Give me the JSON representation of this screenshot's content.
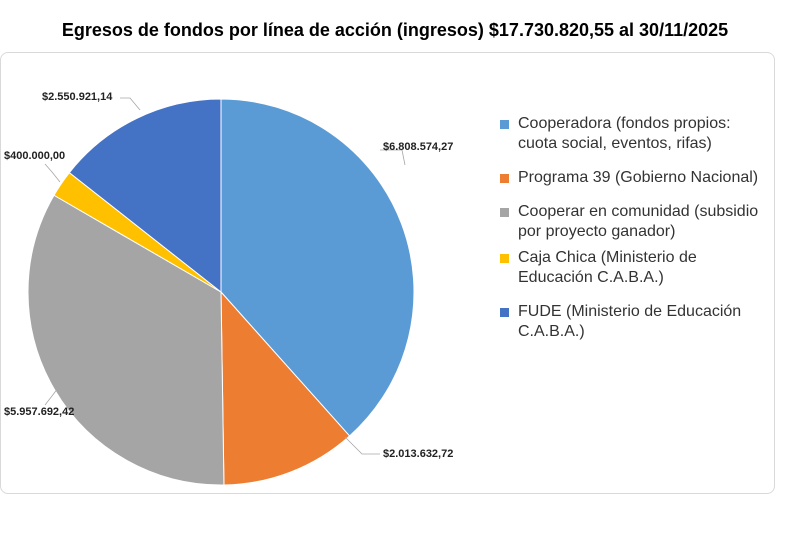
{
  "title": "Egresos de fondos por línea de acción (ingresos) $17.730.820,55 al 30/11/2025",
  "chart_data": {
    "type": "pie",
    "title": "Egresos de fondos por línea de acción (ingresos) $17.730.820,55 al 30/11/2025",
    "legend_position": "right",
    "slices": [
      {
        "name": "Cooperadora (fondos propios: cuota social, eventos, rifas)",
        "value": 6808574.27,
        "label": "$6.808.574,27",
        "color": "#5B9BD5"
      },
      {
        "name": "Programa 39 (Gobierno Nacional)",
        "value": 2013632.72,
        "label": "$2.013.632,72",
        "color": "#ED7D31"
      },
      {
        "name": "Cooperar en comunidad (subsidio por proyecto ganador)",
        "value": 5957692.42,
        "label": "$5.957.692,42",
        "color": "#A5A5A5"
      },
      {
        "name": "Caja Chica (Ministerio de Educación C.A.B.A.)",
        "value": 400000.0,
        "label": "$400.000,00",
        "color": "#FFC000"
      },
      {
        "name": "FUDE (Ministerio de Educación C.A.B.A.)",
        "value": 2550921.14,
        "label": "$2.550.921,14",
        "color": "#4472C4"
      }
    ]
  }
}
